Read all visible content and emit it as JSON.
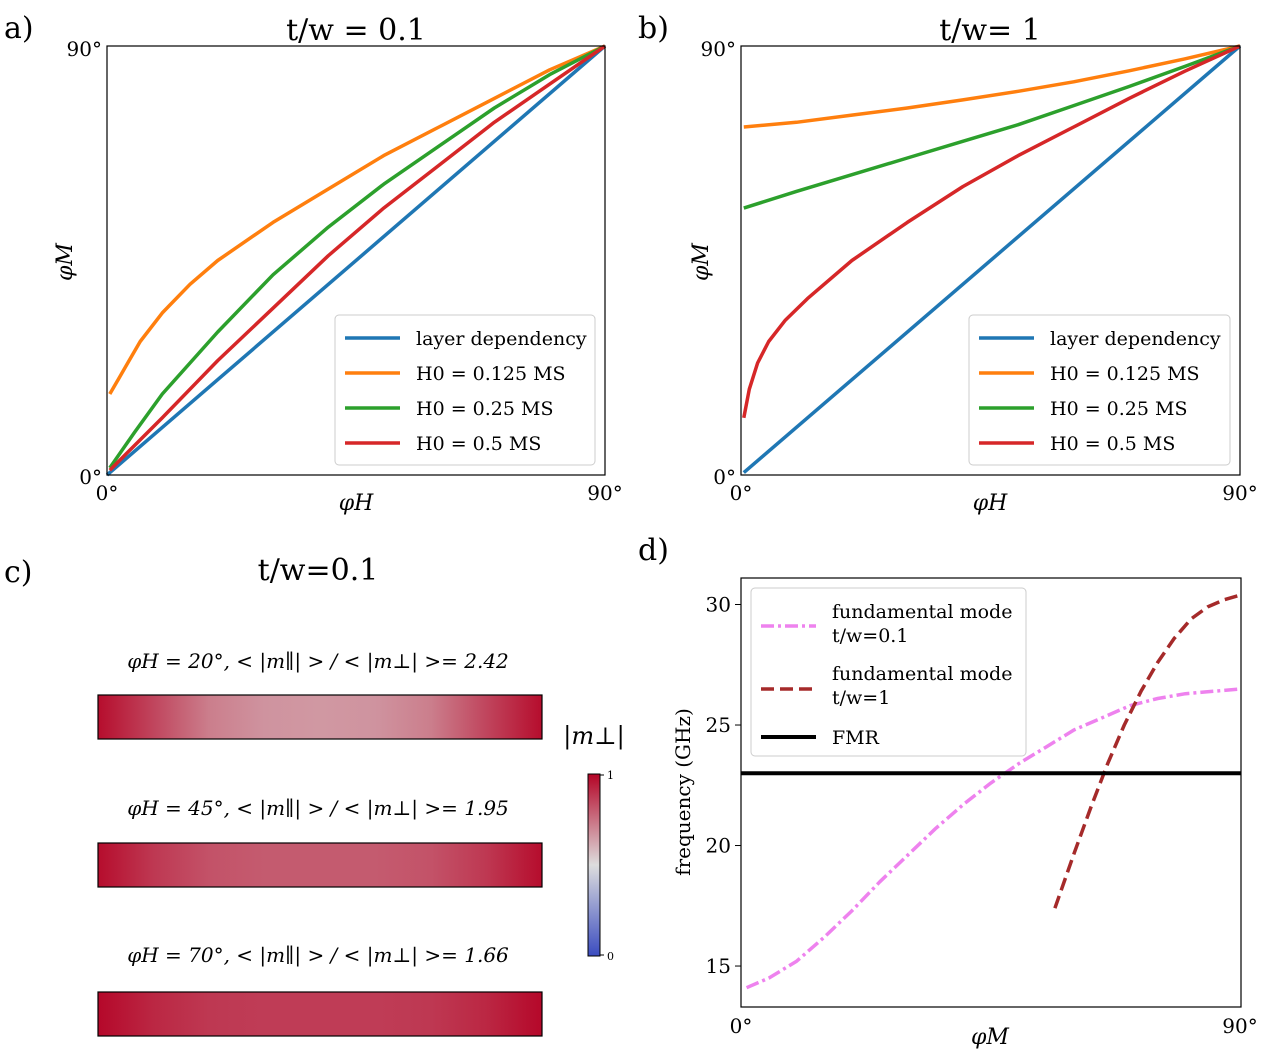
{
  "colors": {
    "blue": "#1f77b4",
    "orange": "#ff7f0e",
    "green": "#2ca02c",
    "red": "#d62728",
    "violet": "#ee82ee",
    "brown": "#a52a2a",
    "black": "#000000"
  },
  "chart_data": [
    {
      "panel": "a)",
      "type": "line",
      "title": "t/w = 0.1",
      "xlabel": "φH",
      "ylabel": "φM",
      "xlim": [
        0,
        90
      ],
      "ylim": [
        0,
        90
      ],
      "xticks": [
        "0°",
        "90°"
      ],
      "yticks": [
        "0°",
        "90°"
      ],
      "legend_position": "lower right",
      "series": [
        {
          "name": "layer dependency",
          "color": "blue",
          "x": [
            0,
            90
          ],
          "y": [
            0,
            90
          ]
        },
        {
          "name": "H0 = 0.125 MS",
          "color": "orange",
          "x": [
            0.5,
            2,
            4,
            6,
            10,
            15,
            20,
            30,
            40,
            50,
            60,
            70,
            80,
            90
          ],
          "y": [
            17,
            20,
            24,
            28,
            34,
            40,
            45,
            53,
            60,
            67,
            73,
            79,
            85,
            90
          ]
        },
        {
          "name": "H0 = 0.25 MS",
          "color": "green",
          "x": [
            0.5,
            5,
            10,
            20,
            30,
            40,
            50,
            60,
            70,
            80,
            90
          ],
          "y": [
            1.5,
            9,
            17,
            30,
            42,
            52,
            61,
            69,
            77,
            84,
            90
          ]
        },
        {
          "name": "H0 = 0.5 MS",
          "color": "red",
          "x": [
            0.5,
            10,
            20,
            30,
            40,
            50,
            60,
            70,
            80,
            90
          ],
          "y": [
            1,
            12,
            24,
            35,
            46,
            56,
            65,
            74,
            82,
            90
          ]
        }
      ]
    },
    {
      "panel": "b)",
      "type": "line",
      "title": "t/w= 1",
      "xlabel": "φH",
      "ylabel": "φM",
      "xlim": [
        0,
        90
      ],
      "ylim": [
        0,
        90
      ],
      "xticks": [
        "0°",
        "90°"
      ],
      "yticks": [
        "0°",
        "90°"
      ],
      "legend_position": "lower right",
      "series": [
        {
          "name": "layer dependency",
          "color": "blue",
          "x": [
            0.5,
            90
          ],
          "y": [
            0.5,
            90
          ]
        },
        {
          "name": "H0 = 0.125 MS",
          "color": "orange",
          "x": [
            0.5,
            10,
            20,
            30,
            40,
            50,
            60,
            70,
            80,
            90
          ],
          "y": [
            73,
            74,
            75.5,
            77,
            78.7,
            80.5,
            82.5,
            84.8,
            87.3,
            90
          ]
        },
        {
          "name": "H0 = 0.25 MS",
          "color": "green",
          "x": [
            0.5,
            10,
            20,
            30,
            40,
            50,
            60,
            70,
            80,
            90
          ],
          "y": [
            56,
            59.5,
            63,
            66.5,
            70,
            73.5,
            77.5,
            81.5,
            85.7,
            90
          ]
        },
        {
          "name": "H0 = 0.5 MS",
          "color": "red",
          "x": [
            0.5,
            1.5,
            3,
            5,
            8,
            12,
            20,
            30,
            40,
            50,
            60,
            70,
            80,
            90
          ],
          "y": [
            12,
            18,
            23.5,
            28,
            32.5,
            37,
            45,
            53,
            60.5,
            67,
            73,
            79,
            84.7,
            90
          ]
        }
      ]
    },
    {
      "panel": "c)",
      "type": "heatmap",
      "title": "t/w=0.1",
      "colorbar_label": "|m⊥|",
      "colorbar_ticks": [
        "0",
        "1"
      ],
      "colormap": "coolwarm",
      "rows": [
        {
          "label": "φH = 20°, < |m∥| > / < |m⊥| >= 2.42",
          "profile": [
            0.98,
            0.85,
            0.72,
            0.67,
            0.66,
            0.67,
            0.72,
            0.85,
            0.98
          ]
        },
        {
          "label": "φH = 45°, < |m∥| > / < |m⊥| >= 1.95",
          "profile": [
            0.98,
            0.88,
            0.82,
            0.8,
            0.8,
            0.8,
            0.82,
            0.88,
            0.98
          ]
        },
        {
          "label": "φH = 70°, < |m∥| > / < |m⊥| >= 1.66",
          "profile": [
            0.99,
            0.92,
            0.88,
            0.87,
            0.87,
            0.87,
            0.88,
            0.92,
            0.99
          ]
        }
      ]
    },
    {
      "panel": "d)",
      "type": "line",
      "title": "",
      "xlabel": "φM",
      "ylabel": "frequency (GHz)",
      "xlim": [
        0,
        90
      ],
      "ylim": [
        13.3,
        31.1
      ],
      "xticks": [
        "0°",
        "90°"
      ],
      "yticks": [
        15,
        20,
        25,
        30
      ],
      "legend_position": "upper left",
      "series": [
        {
          "name_lines": [
            "fundamental mode",
            "t/w=0.1"
          ],
          "color": "violet",
          "dash": "dash-dot",
          "x": [
            1,
            5,
            10,
            15,
            20,
            25,
            30,
            35,
            40,
            45,
            50,
            55,
            60,
            65,
            70,
            75,
            80,
            85,
            90
          ],
          "y": [
            14.1,
            14.5,
            15.2,
            16.2,
            17.3,
            18.5,
            19.6,
            20.7,
            21.7,
            22.6,
            23.4,
            24.1,
            24.8,
            25.3,
            25.8,
            26.1,
            26.3,
            26.4,
            26.5
          ]
        },
        {
          "name_lines": [
            "fundamental mode",
            "t/w=1"
          ],
          "color": "brown",
          "dash": "dash",
          "x": [
            56.5,
            60,
            63,
            66,
            69,
            72,
            75,
            78,
            81,
            84,
            87,
            90
          ],
          "y": [
            17.4,
            19.7,
            21.6,
            23.4,
            25.0,
            26.4,
            27.6,
            28.6,
            29.4,
            29.9,
            30.2,
            30.4
          ]
        },
        {
          "name_lines": [
            "FMR"
          ],
          "color": "black",
          "dash": "solid",
          "x": [
            0,
            90
          ],
          "y": [
            23.0,
            23.0
          ]
        }
      ]
    }
  ]
}
